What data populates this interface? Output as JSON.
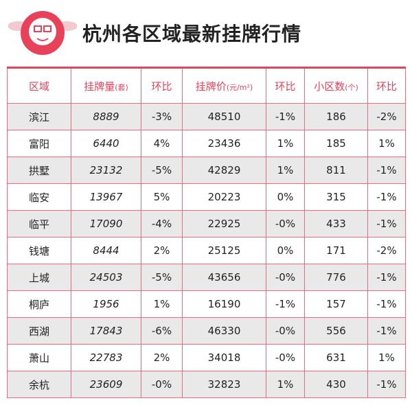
{
  "header": {
    "title": "杭州各区域最新挂牌行情"
  },
  "table": {
    "header": [
      "区域",
      {
        "label": "挂牌量",
        "unit": "(套)"
      },
      "环比",
      {
        "label": "挂牌价",
        "unit": "(元/m²)"
      },
      "环比",
      {
        "label": "小区数",
        "unit": "(个)"
      },
      "环比"
    ],
    "rows": [
      [
        "滨江",
        "8889",
        "-3%",
        "48510",
        "-1%",
        "186",
        "-2%"
      ],
      [
        "富阳",
        "6440",
        "4%",
        "23436",
        "1%",
        "185",
        "1%"
      ],
      [
        "拱墅",
        "23132",
        "-5%",
        "42829",
        "1%",
        "811",
        "-1%"
      ],
      [
        "临安",
        "13967",
        "5%",
        "20223",
        "0%",
        "315",
        "-1%"
      ],
      [
        "临平",
        "17090",
        "-4%",
        "22925",
        "-0%",
        "433",
        "-1%"
      ],
      [
        "钱塘",
        "8444",
        "2%",
        "25125",
        "0%",
        "171",
        "-2%"
      ],
      [
        "上城",
        "24503",
        "-5%",
        "43656",
        "-0%",
        "776",
        "-1%"
      ],
      [
        "桐庐",
        "1956",
        "1%",
        "16190",
        "-1%",
        "157",
        "-1%"
      ],
      [
        "西湖",
        "17843",
        "-6%",
        "46330",
        "-0%",
        "556",
        "-1%"
      ],
      [
        "萧山",
        "22783",
        "2%",
        "34018",
        "-0%",
        "631",
        "1%"
      ],
      [
        "余杭",
        "23609",
        "-0%",
        "32823",
        "1%",
        "430",
        "-1%"
      ]
    ]
  }
}
